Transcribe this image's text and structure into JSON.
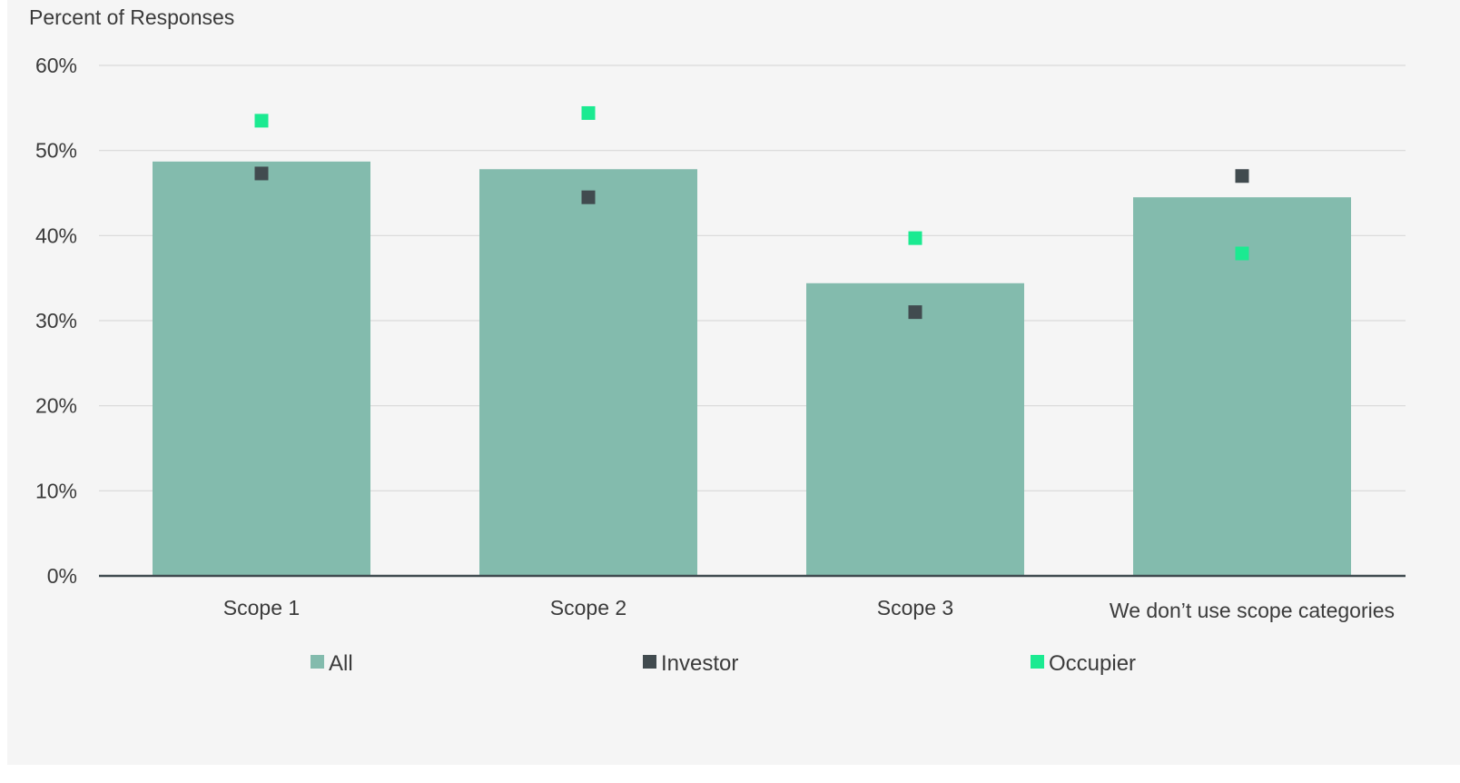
{
  "chart_data": {
    "type": "bar",
    "ylabel": "Percent of Responses",
    "categories": [
      "Scope 1",
      "Scope 2",
      "Scope 3",
      "We don’t use scope categories"
    ],
    "ylim": [
      0,
      60
    ],
    "yticks": [
      0,
      10,
      20,
      30,
      40,
      50,
      60
    ],
    "ytick_format": "{v}%",
    "grid": true,
    "legend_position": "bottom",
    "series": [
      {
        "name": "All",
        "kind": "bar",
        "color": "#83bbad",
        "values": [
          48.7,
          47.8,
          34.4,
          44.5
        ]
      },
      {
        "name": "Investor",
        "kind": "marker",
        "color": "#414b4f",
        "values": [
          47.3,
          44.5,
          31.0,
          47.0
        ]
      },
      {
        "name": "Occupier",
        "kind": "marker",
        "color": "#1bea91",
        "values": [
          53.5,
          54.4,
          39.7,
          37.9
        ]
      }
    ]
  }
}
